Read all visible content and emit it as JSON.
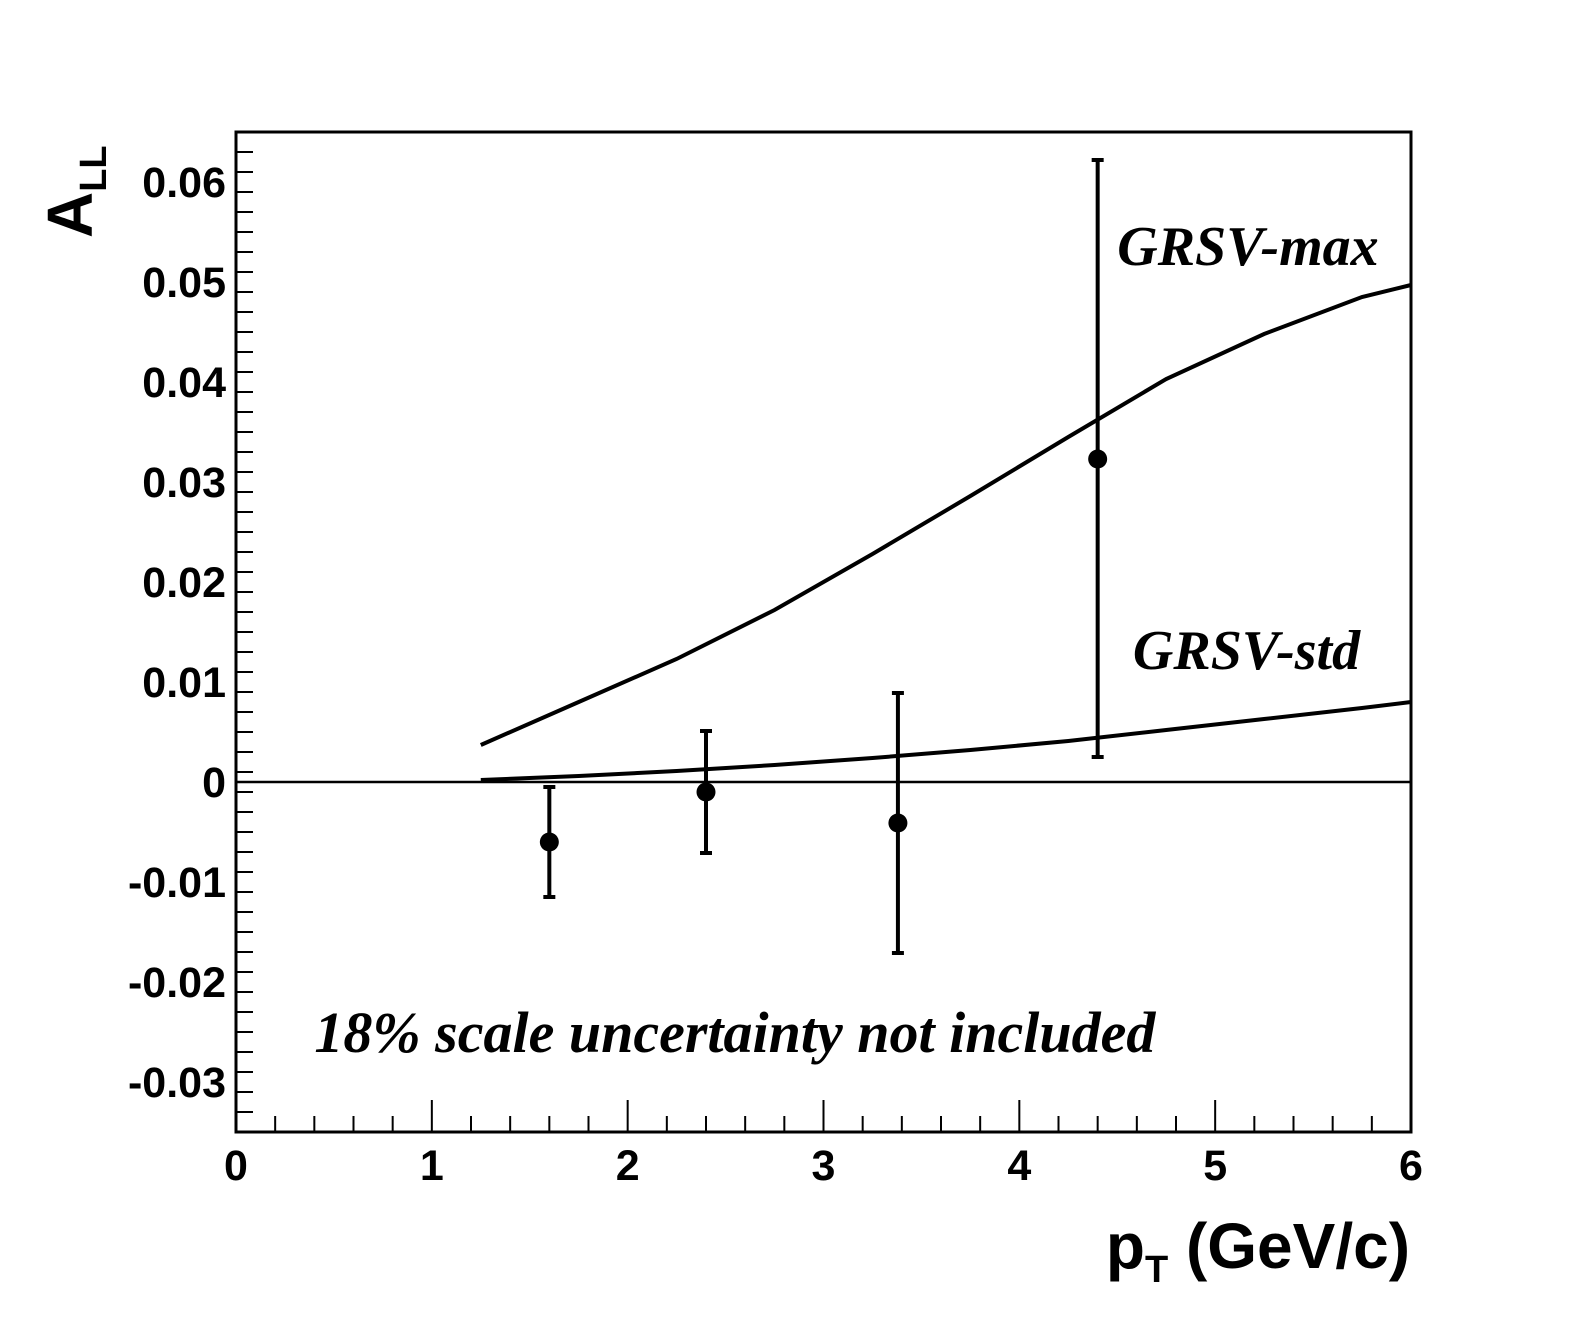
{
  "chart_data": {
    "type": "scatter",
    "xlabel": {
      "main": "p",
      "sub": "T",
      "rest": " (GeV/c)"
    },
    "ylabel": {
      "main": "A",
      "sub": "LL"
    },
    "xlim": [
      0,
      6
    ],
    "ylim": [
      -0.035,
      0.065
    ],
    "x_ticks": [
      "0",
      "1",
      "2",
      "3",
      "4",
      "5",
      "6"
    ],
    "y_ticks": [
      "-0.03",
      "-0.02",
      "-0.01",
      "0",
      "0.01",
      "0.02",
      "0.03",
      "0.04",
      "0.05",
      "0.06"
    ],
    "grid": false,
    "zero_line": true,
    "points": [
      {
        "x": 1.6,
        "y": -0.006,
        "err_low": -0.0115,
        "err_high": -0.0005
      },
      {
        "x": 2.4,
        "y": -0.001,
        "err_low": -0.0071,
        "err_high": 0.0051
      },
      {
        "x": 3.38,
        "y": -0.0041,
        "err_low": -0.0171,
        "err_high": 0.0089
      },
      {
        "x": 4.4,
        "y": 0.0323,
        "err_low": 0.0025,
        "err_high": 0.0622
      }
    ],
    "curves": [
      {
        "label": "GRSV-max",
        "x": [
          1.25,
          1.75,
          2.25,
          2.75,
          3.25,
          3.75,
          4.25,
          4.75,
          5.25,
          5.75,
          6.0
        ],
        "y": [
          0.0037,
          0.008,
          0.0123,
          0.0172,
          0.0228,
          0.0286,
          0.0345,
          0.0403,
          0.0448,
          0.0485,
          0.0497
        ]
      },
      {
        "label": "GRSV-std",
        "x": [
          1.25,
          1.75,
          2.25,
          2.75,
          3.25,
          3.75,
          4.25,
          4.75,
          5.25,
          5.75,
          6.0
        ],
        "y": [
          0.0002,
          0.0006,
          0.0011,
          0.0017,
          0.0024,
          0.0032,
          0.0041,
          0.0052,
          0.0063,
          0.0074,
          0.008
        ]
      }
    ],
    "annotations": [
      {
        "text": "GRSV-max",
        "x": 4.5,
        "y": 0.0517
      },
      {
        "text": "GRSV-std",
        "x": 4.58,
        "y": 0.0113
      },
      {
        "text": "18% scale uncertainty not included",
        "x": 0.4,
        "y": -0.027
      }
    ]
  }
}
